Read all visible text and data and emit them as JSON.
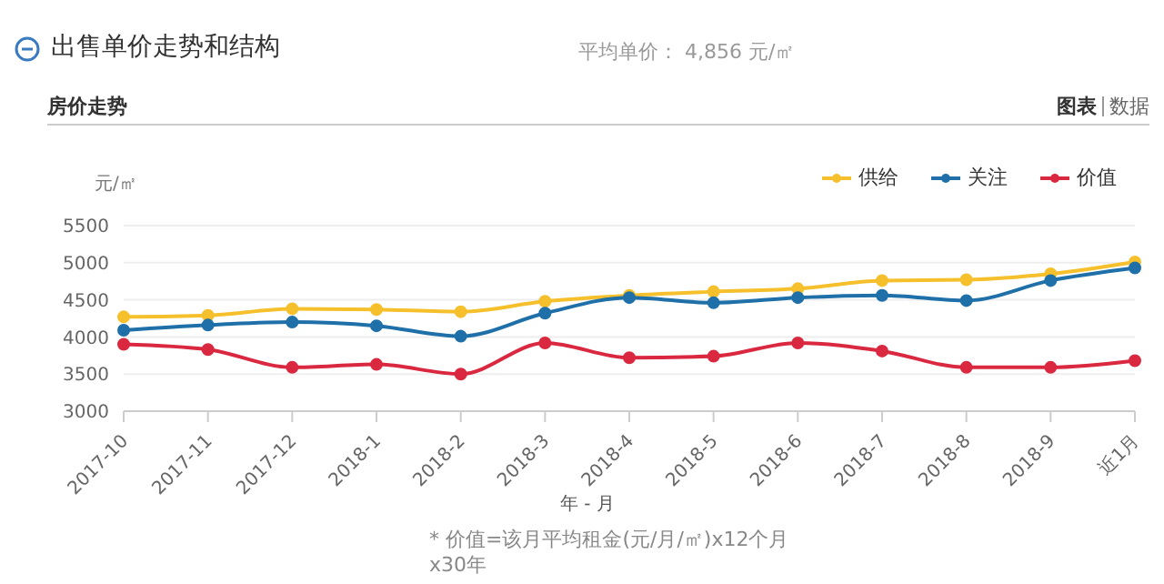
{
  "chart_data": {
    "type": "line",
    "title": "出售单价走势和结构",
    "subtitle": "平均单价： 4,856 元/㎡",
    "ylabel": "元/㎡",
    "xlabel": "年 - 月",
    "annotations": [
      "房价走势",
      "图表",
      "数据",
      "* 价值=该月平均租金(元/月/㎡)x12个月x30年"
    ],
    "categories": [
      "2017-10",
      "2017-11",
      "2017-12",
      "2018-1",
      "2018-2",
      "2018-3",
      "2018-4",
      "2018-5",
      "2018-6",
      "2018-7",
      "2018-8",
      "2018-9",
      "近1月"
    ],
    "series": [
      {
        "name": "供给",
        "color": "#f5c02c",
        "values": [
          4270,
          4290,
          4380,
          4370,
          4340,
          4480,
          4560,
          4610,
          4650,
          4760,
          4770,
          4850,
          5010
        ]
      },
      {
        "name": "关注",
        "color": "#1f6fa8",
        "values": [
          4090,
          4160,
          4200,
          4150,
          4010,
          4320,
          4530,
          4460,
          4530,
          4560,
          4490,
          4760,
          4930
        ]
      },
      {
        "name": "价值",
        "color": "#d9283f",
        "values": [
          3900,
          3830,
          3590,
          3630,
          3500,
          3920,
          3720,
          3740,
          3920,
          3810,
          3590,
          3590,
          3680
        ]
      }
    ],
    "ylim": [
      3000,
      5500
    ],
    "yticks": [
      3000,
      3500,
      4000,
      4500,
      5000,
      5500
    ],
    "grid": "y",
    "legend": "top right",
    "marker": "circle",
    "line_style": "solid"
  }
}
